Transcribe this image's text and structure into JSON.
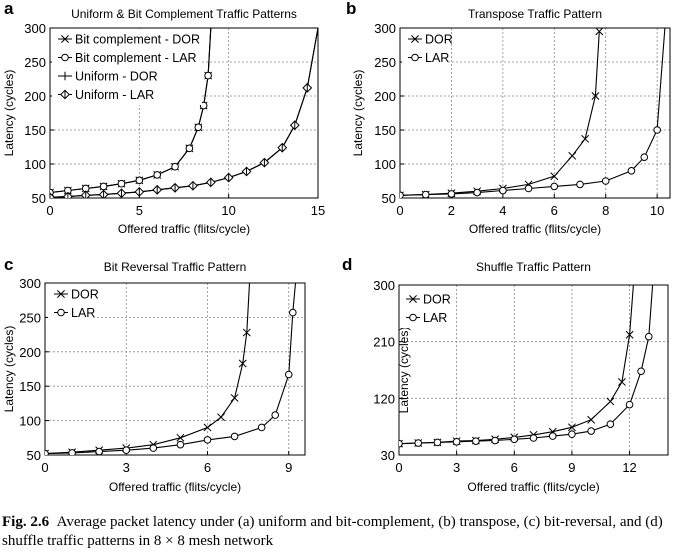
{
  "caption": {
    "label": "Fig. 2.6",
    "text": "Average packet latency under (a) uniform and bit-complement, (b) transpose, (c) bit-reversal, and (d) shuffle traffic patterns in 8 × 8 mesh network"
  },
  "chart_data": [
    {
      "id": "a",
      "panel_label": "a",
      "type": "line",
      "title": "Uniform & Bit Complement Traffic Patterns",
      "xlabel": "Offered traffic (flits/cycle)",
      "ylabel": "Latency (cycles)",
      "xlim": [
        0,
        15
      ],
      "ylim": [
        50,
        300
      ],
      "xticks": [
        0,
        5,
        10,
        15
      ],
      "yticks": [
        50,
        100,
        150,
        200,
        250,
        300
      ],
      "legend_position": "top-left",
      "series": [
        {
          "name": "Bit complement - DOR",
          "marker": "x",
          "x": [
            0,
            1,
            2,
            3,
            4,
            5,
            6,
            7,
            7.8,
            8.3,
            8.6,
            8.85,
            9.0
          ],
          "y": [
            58,
            61,
            64,
            67,
            71,
            76,
            84,
            96,
            123,
            154,
            186,
            230,
            300
          ]
        },
        {
          "name": "Bit complement - LAR",
          "marker": "o",
          "x": [
            0,
            1,
            2,
            3,
            4,
            5,
            6,
            7,
            7.8,
            8.3,
            8.6,
            8.85,
            9.0
          ],
          "y": [
            58,
            61,
            64,
            67,
            71,
            76,
            84,
            96,
            123,
            154,
            186,
            230,
            300
          ]
        },
        {
          "name": "Uniform - DOR",
          "marker": "+",
          "x": [
            0,
            1,
            2,
            3,
            4,
            5,
            6,
            7,
            8,
            9,
            10,
            11,
            12,
            13,
            13.7,
            14.4,
            15.0
          ],
          "y": [
            51,
            52,
            54,
            55,
            57,
            59,
            62,
            65,
            68,
            73,
            80,
            89,
            102,
            124,
            157,
            212,
            300
          ]
        },
        {
          "name": "Uniform - LAR",
          "marker": "diamond",
          "x": [
            0,
            1,
            2,
            3,
            4,
            5,
            6,
            7,
            8,
            9,
            10,
            11,
            12,
            13,
            13.7,
            14.4,
            15.0
          ],
          "y": [
            51,
            52,
            54,
            55,
            57,
            59,
            62,
            65,
            68,
            73,
            80,
            89,
            102,
            124,
            157,
            212,
            300
          ]
        }
      ]
    },
    {
      "id": "b",
      "panel_label": "b",
      "type": "line",
      "title": "Transpose Traffic Pattern",
      "xlabel": "Offered traffic (flits/cycle)",
      "ylabel": "Latency (cycles)",
      "xlim": [
        0,
        10.5
      ],
      "ylim": [
        50,
        300
      ],
      "xticks": [
        0,
        2,
        4,
        6,
        8,
        10
      ],
      "yticks": [
        50,
        100,
        150,
        200,
        250,
        300
      ],
      "legend_position": "top-left",
      "series": [
        {
          "name": "DOR",
          "marker": "x",
          "x": [
            0,
            1,
            2,
            3,
            4,
            5,
            6,
            6.7,
            7.2,
            7.6,
            7.75
          ],
          "y": [
            54,
            55,
            57,
            60,
            64,
            70,
            82,
            112,
            137,
            200,
            295
          ]
        },
        {
          "name": "LAR",
          "marker": "o",
          "x": [
            0,
            1,
            2,
            3,
            4,
            5,
            6,
            7,
            8,
            9,
            9.5,
            10.0,
            10.3
          ],
          "y": [
            54,
            55,
            56,
            58,
            61,
            64,
            67,
            70,
            75,
            90,
            110,
            150,
            300
          ]
        }
      ]
    },
    {
      "id": "c",
      "panel_label": "c",
      "type": "line",
      "title": "Bit Reversal Traffic Pattern",
      "xlabel": "Offered traffic (flits/cycle)",
      "ylabel": "Latency (cycles)",
      "xlim": [
        0,
        9.6
      ],
      "ylim": [
        50,
        300
      ],
      "xticks": [
        0,
        3,
        6,
        9
      ],
      "yticks": [
        50,
        100,
        150,
        200,
        250,
        300
      ],
      "legend_position": "top-left",
      "series": [
        {
          "name": "DOR",
          "marker": "x",
          "x": [
            0,
            1,
            2,
            3,
            4,
            5,
            6,
            6.5,
            7.0,
            7.3,
            7.45,
            7.55
          ],
          "y": [
            52,
            54,
            57,
            60,
            65,
            75,
            90,
            105,
            133,
            183,
            228,
            300
          ]
        },
        {
          "name": "LAR",
          "marker": "o",
          "x": [
            0,
            1,
            2,
            3,
            4,
            5,
            6,
            7,
            8,
            8.5,
            9.0,
            9.15,
            9.25
          ],
          "y": [
            52,
            53,
            55,
            57,
            60,
            65,
            72,
            77,
            90,
            108,
            167,
            257,
            300
          ]
        }
      ]
    },
    {
      "id": "d",
      "panel_label": "d",
      "type": "line",
      "title": "Shuffle Traffic Pattern",
      "xlabel": "Offered traffic (flits/cycle)",
      "ylabel": "Latency (cycles)",
      "xlim": [
        0,
        14
      ],
      "ylim": [
        30,
        300
      ],
      "xticks": [
        0,
        3,
        6,
        9,
        12
      ],
      "yticks": [
        30,
        120,
        210,
        300
      ],
      "legend_position": "top-left",
      "series": [
        {
          "name": "DOR",
          "marker": "x",
          "x": [
            0,
            1,
            2,
            3,
            4,
            5,
            6,
            7,
            8,
            9,
            10,
            11,
            11.6,
            12.0,
            12.2
          ],
          "y": [
            48,
            49,
            50,
            52,
            53,
            55,
            58,
            62,
            67,
            74,
            86,
            115,
            146,
            221,
            300
          ]
        },
        {
          "name": "LAR",
          "marker": "o",
          "x": [
            0,
            1,
            2,
            3,
            4,
            5,
            6,
            7,
            8,
            9,
            10,
            11,
            12,
            12.6,
            13.0,
            13.2
          ],
          "y": [
            48,
            49,
            50,
            51,
            52,
            53,
            55,
            57,
            60,
            63,
            68,
            79,
            110,
            163,
            218,
            300
          ]
        }
      ]
    }
  ]
}
